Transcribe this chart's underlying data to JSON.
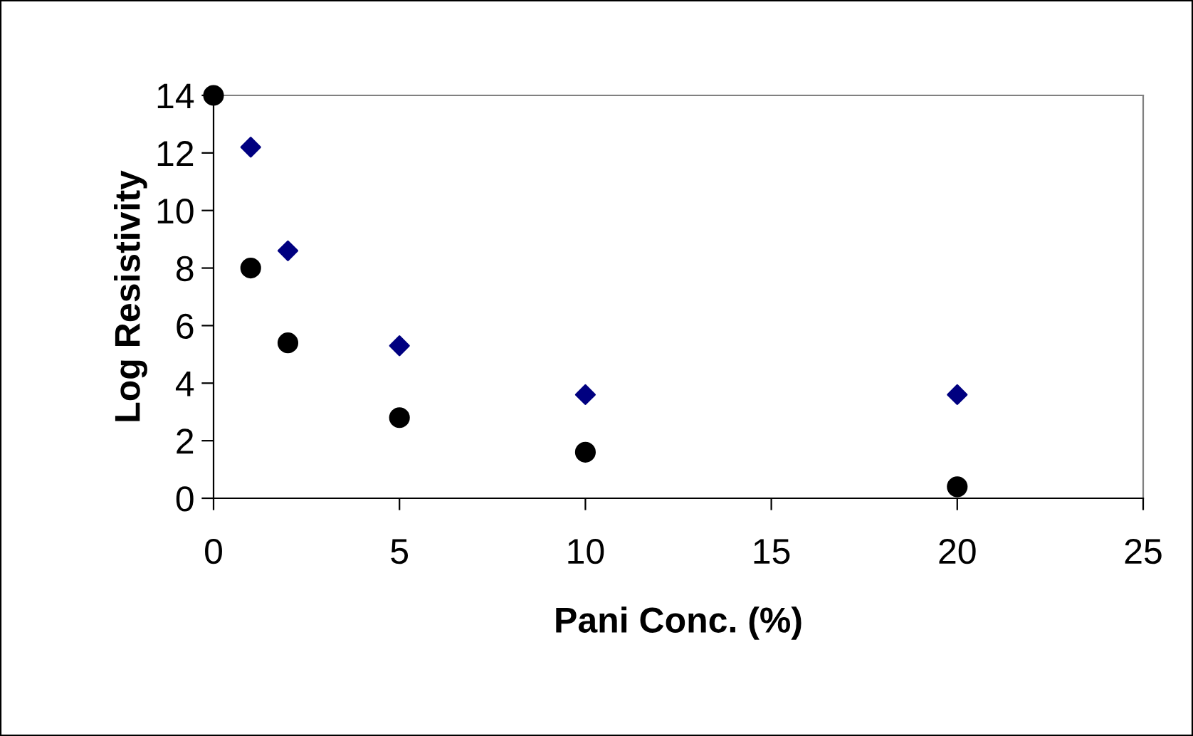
{
  "chart_data": {
    "type": "scatter",
    "xlabel": "Pani Conc. (%)",
    "ylabel": "Log Resistivity",
    "xlim": [
      0,
      25
    ],
    "xticks": [
      0,
      5,
      10,
      15,
      20,
      25
    ],
    "ylim": [
      0,
      14
    ],
    "yticks": [
      0,
      2,
      4,
      6,
      8,
      10,
      12,
      14
    ],
    "grid": false,
    "legend": false,
    "series": [
      {
        "color": "#000080",
        "marker": "diamond",
        "x": [
          1,
          2,
          5,
          10,
          20
        ],
        "values": [
          12.2,
          8.6,
          5.3,
          3.6,
          3.6
        ]
      },
      {
        "color": "#000000",
        "marker": "circle",
        "x": [
          0,
          1,
          2,
          5,
          10,
          20
        ],
        "values": [
          14,
          8.0,
          5.4,
          2.8,
          1.6,
          0.4
        ]
      }
    ]
  }
}
